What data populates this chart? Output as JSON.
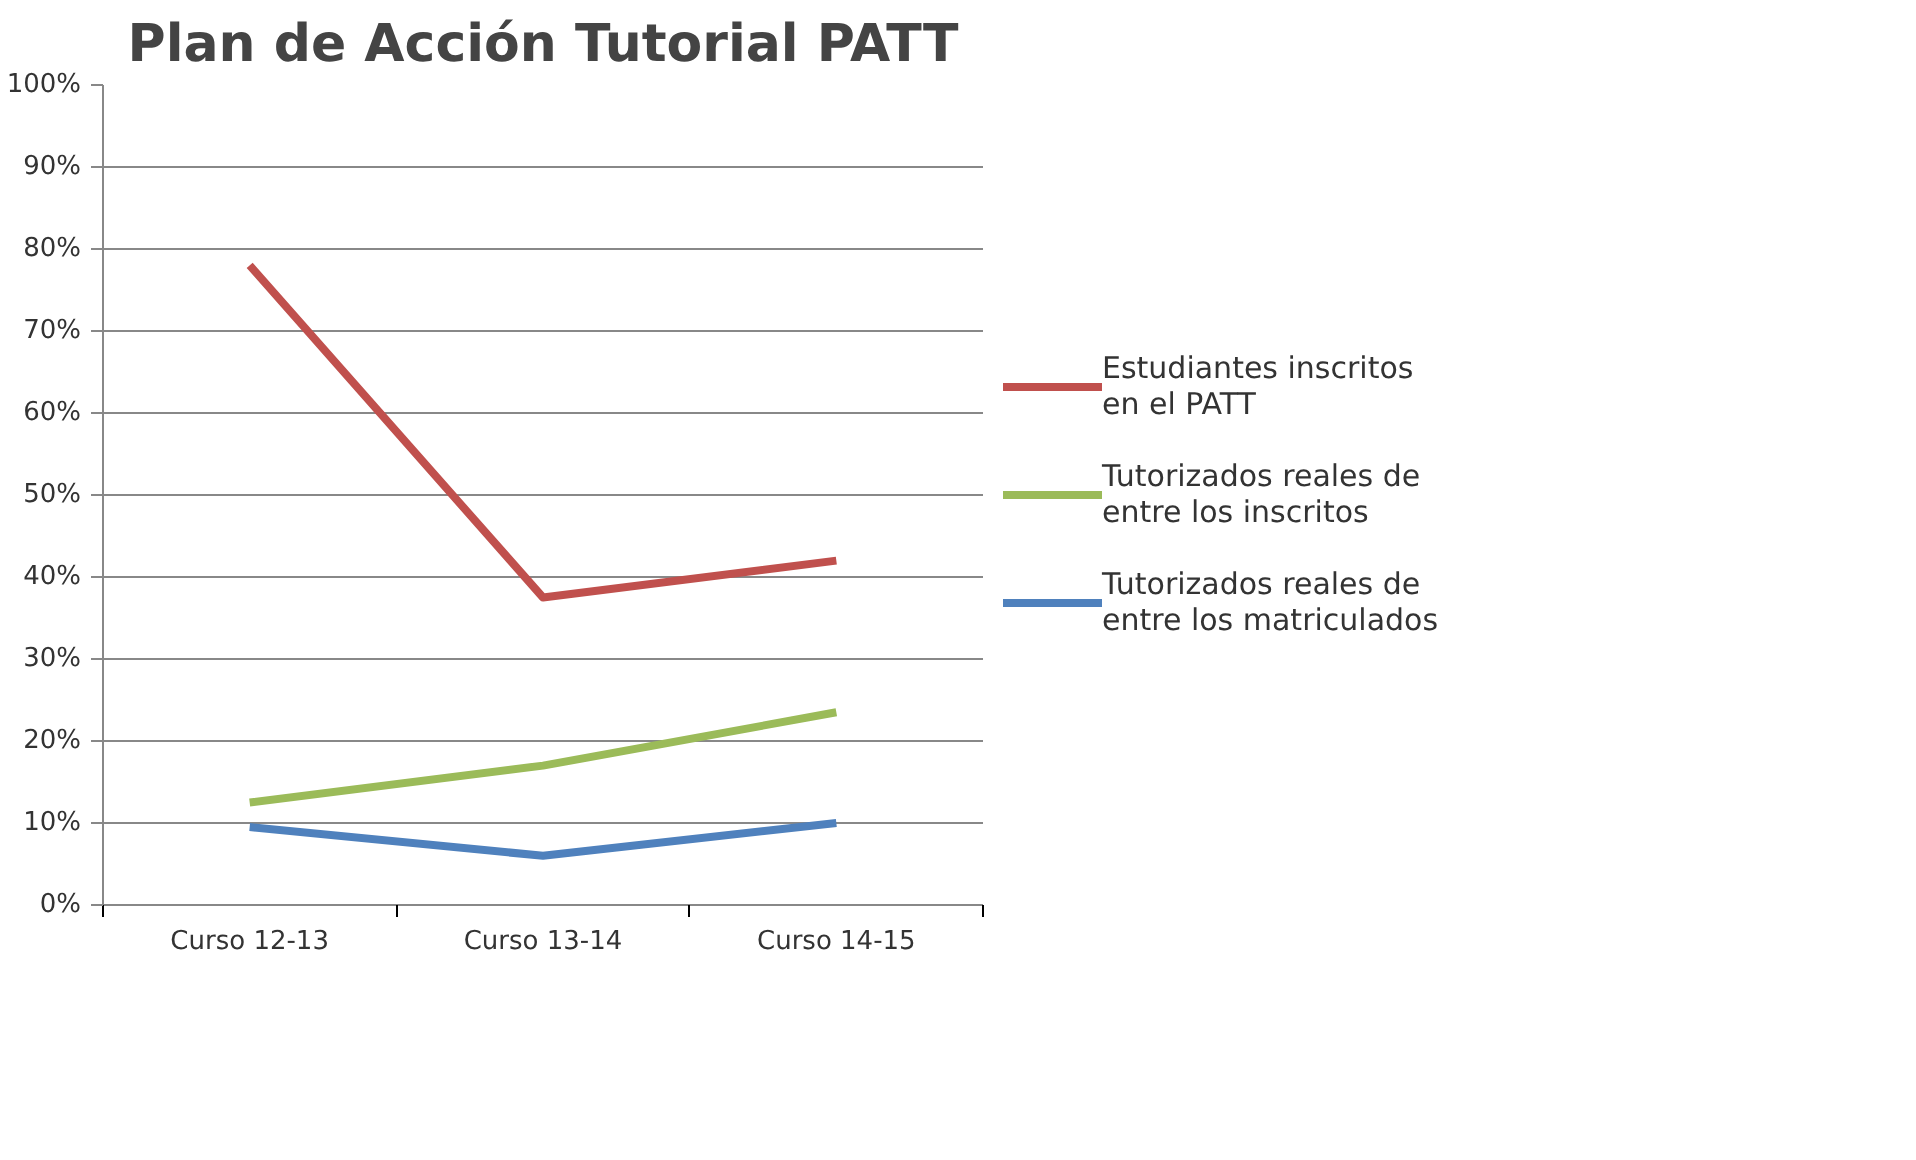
{
  "chart_data": {
    "type": "line",
    "title": "Plan de Acción Tutorial PATT",
    "categories": [
      "Curso 12-13",
      "Curso 13-14",
      "Curso 14-15"
    ],
    "series": [
      {
        "name": "Estudiantes inscritos en el PATT",
        "color": "#c0504d",
        "values": [
          78,
          37.5,
          42
        ]
      },
      {
        "name": "Tutorizados reales de entre los inscritos",
        "color": "#9bbb59",
        "values": [
          12.5,
          17,
          23.5
        ]
      },
      {
        "name": "Tutorizados reales de entre los matriculados",
        "color": "#4f81bd",
        "values": [
          9.5,
          6,
          10
        ]
      }
    ],
    "ylim": [
      0,
      100
    ],
    "yticks": [
      {
        "value": 0,
        "label": "0%"
      },
      {
        "value": 10,
        "label": "10%"
      },
      {
        "value": 20,
        "label": "20%"
      },
      {
        "value": 30,
        "label": "30%"
      },
      {
        "value": 40,
        "label": "40%"
      },
      {
        "value": 50,
        "label": "50%"
      },
      {
        "value": 60,
        "label": "60%"
      },
      {
        "value": 70,
        "label": "70%"
      },
      {
        "value": 80,
        "label": "80%"
      },
      {
        "value": 90,
        "label": "90%"
      },
      {
        "value": 100,
        "label": "100%"
      }
    ],
    "grid": "y",
    "legend": "right",
    "marker": "none",
    "line_style": "solid"
  }
}
